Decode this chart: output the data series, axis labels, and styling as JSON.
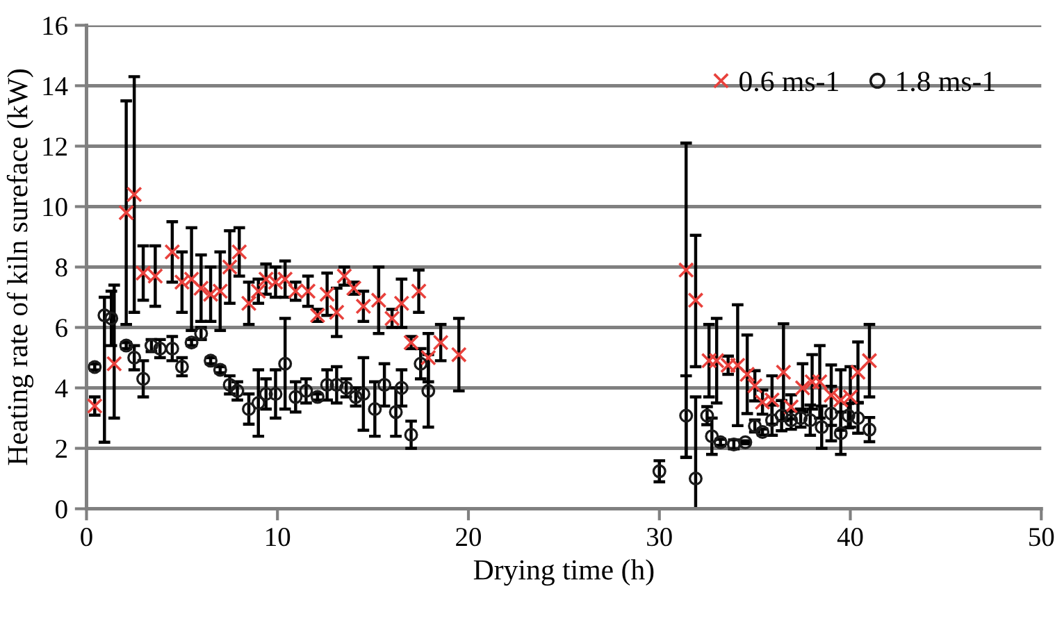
{
  "chart_data": {
    "type": "scatter",
    "xlabel": "Drying time (h)",
    "ylabel": "Heating rate of kiln sureface (kW)",
    "xlim": [
      0,
      50
    ],
    "xticks": [
      0,
      10,
      20,
      30,
      40,
      50
    ],
    "ylim": [
      0,
      16
    ],
    "yticks": [
      0,
      2,
      4,
      6,
      8,
      10,
      12,
      14,
      16
    ],
    "grid": "y",
    "legend": "top right",
    "series": [
      {
        "name": "0.6 ms-1",
        "color": "#e8413c",
        "marker": "cross",
        "x": [
          0.43,
          1.45,
          2.08,
          2.5,
          2.97,
          3.6,
          4.49,
          5.0,
          5.5,
          6.0,
          6.5,
          7.0,
          7.5,
          8.0,
          8.5,
          9.0,
          9.4,
          9.9,
          10.4,
          10.95,
          11.6,
          12.1,
          12.6,
          13.1,
          13.5,
          14.0,
          14.5,
          15.3,
          16.0,
          16.5,
          17.0,
          17.4,
          17.9,
          18.55,
          19.5,
          31.4,
          31.9,
          32.6,
          33.0,
          33.6,
          34.1,
          34.6,
          35.0,
          35.4,
          35.9,
          36.5,
          36.9,
          37.5,
          38.0,
          38.4,
          39.0,
          39.5,
          40.0,
          40.4,
          41.0
        ],
        "values": [
          3.4,
          4.8,
          9.8,
          10.4,
          7.8,
          7.7,
          8.5,
          7.5,
          7.6,
          7.3,
          7.1,
          7.2,
          8.0,
          8.5,
          6.8,
          7.2,
          7.6,
          7.5,
          7.6,
          7.2,
          7.2,
          6.4,
          7.1,
          6.5,
          7.7,
          7.3,
          6.7,
          6.9,
          6.3,
          6.8,
          5.5,
          7.2,
          5.0,
          5.5,
          5.1,
          7.9,
          6.9,
          4.9,
          4.9,
          4.75,
          4.75,
          4.45,
          4.07,
          3.53,
          3.6,
          4.52,
          3.37,
          4.0,
          4.2,
          4.2,
          3.76,
          3.6,
          3.7,
          4.52,
          4.9
        ],
        "errors": [
          0.3,
          [
            3.0,
            7.4
          ],
          [
            6.1,
            13.5
          ],
          [
            6.5,
            14.3
          ],
          0.9,
          1.0,
          1.0,
          1.0,
          1.7,
          1.1,
          0.9,
          1.3,
          1.2,
          0.8,
          0.7,
          0.4,
          0.5,
          0.5,
          0.6,
          0.3,
          0.5,
          0.2,
          0.7,
          0.8,
          0.3,
          0.2,
          0.5,
          1.1,
          0.3,
          0.8,
          0.2,
          0.7,
          0.8,
          0.6,
          1.2,
          [
            1.7,
            12.1
          ],
          [
            4.7,
            9.05
          ],
          1.2,
          1.4,
          0.3,
          2.0,
          1.3,
          0.5,
          0.4,
          0.8,
          1.6,
          0.4,
          0.8,
          0.9,
          1.2,
          1.0,
          1.0,
          1.0,
          1.0,
          1.2
        ]
      },
      {
        "name": "1.8 ms-1",
        "color": "#1a1a1a",
        "marker": "circle",
        "x": [
          0.43,
          0.94,
          1.3,
          2.08,
          2.5,
          2.97,
          3.4,
          3.85,
          4.49,
          5.0,
          5.5,
          6.0,
          6.5,
          7.0,
          7.5,
          7.9,
          8.5,
          9.0,
          9.4,
          9.9,
          10.4,
          10.95,
          11.5,
          12.1,
          12.6,
          13.1,
          13.6,
          14.1,
          14.5,
          15.1,
          15.6,
          16.2,
          16.5,
          17.0,
          17.5,
          17.9,
          30.0,
          31.4,
          31.9,
          32.5,
          32.75,
          33.2,
          33.9,
          34.5,
          35.0,
          35.4,
          35.9,
          36.4,
          36.9,
          37.4,
          37.9,
          38.5,
          39.0,
          39.5,
          39.9,
          40.4,
          41.0
        ],
        "values": [
          4.69,
          6.4,
          6.3,
          5.4,
          5.0,
          4.3,
          5.4,
          5.3,
          5.3,
          4.7,
          5.5,
          5.8,
          4.9,
          4.6,
          4.1,
          3.9,
          3.3,
          3.5,
          3.8,
          3.8,
          4.8,
          3.7,
          3.9,
          3.7,
          4.1,
          4.1,
          4.0,
          3.7,
          3.8,
          3.3,
          4.1,
          3.2,
          4.0,
          2.45,
          4.8,
          3.9,
          1.24,
          3.08,
          1.0,
          3.08,
          2.4,
          2.2,
          2.13,
          2.2,
          2.74,
          2.54,
          2.93,
          3.08,
          2.93,
          3.0,
          2.93,
          2.7,
          3.15,
          2.5,
          3.08,
          3.0,
          2.62
        ],
        "errors": [
          0.1,
          [
            2.2,
            7.0
          ],
          0.9,
          0.1,
          0.4,
          0.6,
          0.2,
          0.3,
          0.4,
          0.3,
          0.1,
          0.2,
          0.1,
          0.1,
          0.3,
          0.3,
          0.5,
          1.1,
          0.5,
          0.8,
          1.5,
          0.5,
          0.4,
          0.1,
          0.5,
          0.6,
          0.3,
          0.3,
          1.2,
          0.9,
          0.7,
          0.8,
          0.6,
          0.45,
          0.5,
          1.2,
          0.35,
          [
            1.7,
            4.4
          ],
          [
            0,
            3.7
          ],
          0.3,
          0.6,
          0.1,
          0.15,
          0.05,
          0.2,
          0.1,
          0.5,
          0.5,
          0.3,
          0.3,
          0.5,
          0.7,
          0.9,
          0.7,
          0.4,
          0.5,
          0.4
        ]
      }
    ]
  }
}
